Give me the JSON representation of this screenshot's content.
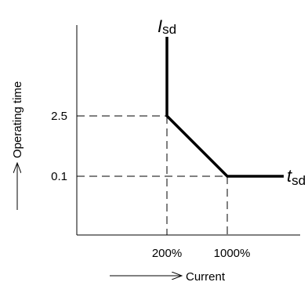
{
  "chart_data": {
    "type": "line",
    "title": "",
    "xlabel": "Current",
    "ylabel": "Operating time",
    "x_ticks": [
      "200%",
      "1000%"
    ],
    "y_ticks": [
      "2.5",
      "0.1"
    ],
    "series": [
      {
        "points": [
          {
            "x": "200%",
            "y": "vertical (above 2.5)"
          },
          {
            "x": "200%",
            "y": 2.5
          },
          {
            "x": "1000%",
            "y": 0.1
          },
          {
            "x": "beyond 1000%",
            "y": 0.1
          }
        ]
      }
    ],
    "annotations": [
      {
        "main": "I",
        "sub": "sd",
        "at": "top of vertical segment"
      },
      {
        "main": "t",
        "sub": "sd",
        "at": "right end of horizontal segment"
      }
    ],
    "grid": "dashed reference lines at ticks",
    "colors": {
      "line": "#000000"
    }
  }
}
